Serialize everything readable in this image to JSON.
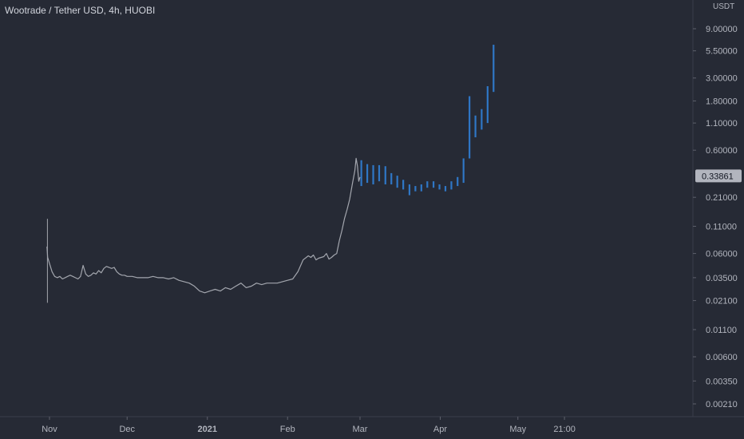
{
  "chart_data": {
    "type": "line",
    "title": "Wootrade / Tether USD, 4h, HUOBI",
    "price_unit": "USDT",
    "y_scale": "log",
    "ylim": [
      0.0017,
      17
    ],
    "y_ticks": [
      "9.00000",
      "5.50000",
      "3.00000",
      "1.80000",
      "1.10000",
      "0.60000",
      "0.21000",
      "0.11000",
      "0.06000",
      "0.03500",
      "0.02100",
      "0.01100",
      "0.00600",
      "0.00350",
      "0.00210"
    ],
    "y_tick_values": [
      9,
      5.5,
      3,
      1.8,
      1.1,
      0.6,
      0.21,
      0.11,
      0.06,
      0.035,
      0.021,
      0.011,
      0.006,
      0.0035,
      0.0021
    ],
    "x_tick_labels": [
      "Nov",
      "Dec",
      "2021",
      "Feb",
      "Mar",
      "Apr",
      "May",
      "21:00"
    ],
    "x_tick_days": [
      0,
      30,
      61,
      92,
      120,
      151,
      181,
      199
    ],
    "current_price_label": "0.33861",
    "current_price": 0.33861,
    "colors": {
      "background": "#262a35",
      "history_line": "#a3a6ae",
      "projection_bars": "#2f77c6",
      "axis_text": "#b2b5be",
      "price_tag_bg": "#b2b5be",
      "price_tag_text": "#131722"
    },
    "series": [
      {
        "style": "line",
        "x_days": [
          -1,
          -0.7,
          0,
          1,
          2,
          3,
          4,
          5,
          6,
          7,
          8,
          9,
          10,
          11,
          12,
          13,
          14,
          15,
          16,
          17,
          18,
          19,
          20,
          21,
          22,
          23,
          24,
          25,
          26,
          27,
          28,
          29,
          30,
          32,
          34,
          36,
          38,
          40,
          42,
          44,
          46,
          48,
          50,
          52,
          54,
          56,
          58,
          60,
          62,
          64,
          66,
          68,
          70,
          72,
          74,
          76,
          78,
          80,
          82,
          84,
          86,
          88,
          90,
          92,
          94,
          96,
          98,
          100,
          101,
          102,
          103,
          104,
          105,
          106,
          107,
          108,
          109,
          110,
          111,
          112,
          113,
          114,
          115,
          116,
          117,
          118,
          118.5,
          119,
          119.5,
          120
        ],
        "values": [
          0.07,
          0.055,
          0.048,
          0.04,
          0.036,
          0.035,
          0.036,
          0.034,
          0.035,
          0.036,
          0.037,
          0.036,
          0.035,
          0.034,
          0.036,
          0.046,
          0.038,
          0.036,
          0.037,
          0.039,
          0.038,
          0.041,
          0.039,
          0.043,
          0.045,
          0.044,
          0.043,
          0.044,
          0.04,
          0.038,
          0.037,
          0.037,
          0.036,
          0.036,
          0.035,
          0.035,
          0.035,
          0.036,
          0.035,
          0.035,
          0.034,
          0.035,
          0.033,
          0.032,
          0.031,
          0.029,
          0.026,
          0.025,
          0.026,
          0.027,
          0.026,
          0.028,
          0.027,
          0.029,
          0.031,
          0.028,
          0.029,
          0.031,
          0.03,
          0.031,
          0.031,
          0.031,
          0.032,
          0.033,
          0.034,
          0.04,
          0.052,
          0.057,
          0.055,
          0.058,
          0.052,
          0.054,
          0.055,
          0.056,
          0.06,
          0.053,
          0.055,
          0.058,
          0.06,
          0.08,
          0.1,
          0.13,
          0.16,
          0.2,
          0.28,
          0.38,
          0.5,
          0.42,
          0.3,
          0.33
        ]
      },
      {
        "style": "bars",
        "bars": [
          {
            "x_day": 120.5,
            "low": 0.27,
            "high": 0.48
          },
          {
            "x_day": 122.8,
            "low": 0.29,
            "high": 0.44
          },
          {
            "x_day": 125.1,
            "low": 0.28,
            "high": 0.43
          },
          {
            "x_day": 127.4,
            "low": 0.3,
            "high": 0.43
          },
          {
            "x_day": 129.8,
            "low": 0.28,
            "high": 0.42
          },
          {
            "x_day": 132.1,
            "low": 0.28,
            "high": 0.36
          },
          {
            "x_day": 134.4,
            "low": 0.26,
            "high": 0.34
          },
          {
            "x_day": 136.7,
            "low": 0.25,
            "high": 0.31
          },
          {
            "x_day": 139.1,
            "low": 0.22,
            "high": 0.28
          },
          {
            "x_day": 141.4,
            "low": 0.24,
            "high": 0.27
          },
          {
            "x_day": 143.7,
            "low": 0.24,
            "high": 0.28
          },
          {
            "x_day": 146.0,
            "low": 0.26,
            "high": 0.3
          },
          {
            "x_day": 148.4,
            "low": 0.26,
            "high": 0.3
          },
          {
            "x_day": 150.7,
            "low": 0.25,
            "high": 0.28
          },
          {
            "x_day": 153.0,
            "low": 0.24,
            "high": 0.27
          },
          {
            "x_day": 155.3,
            "low": 0.25,
            "high": 0.3
          },
          {
            "x_day": 157.7,
            "low": 0.27,
            "high": 0.33
          },
          {
            "x_day": 160.0,
            "low": 0.29,
            "high": 0.5
          },
          {
            "x_day": 162.3,
            "low": 0.5,
            "high": 2.0
          },
          {
            "x_day": 164.6,
            "low": 0.8,
            "high": 1.3
          },
          {
            "x_day": 167.0,
            "low": 0.95,
            "high": 1.5
          },
          {
            "x_day": 169.3,
            "low": 1.1,
            "high": 2.5
          },
          {
            "x_day": 171.6,
            "low": 2.2,
            "high": 6.3
          }
        ]
      }
    ]
  }
}
